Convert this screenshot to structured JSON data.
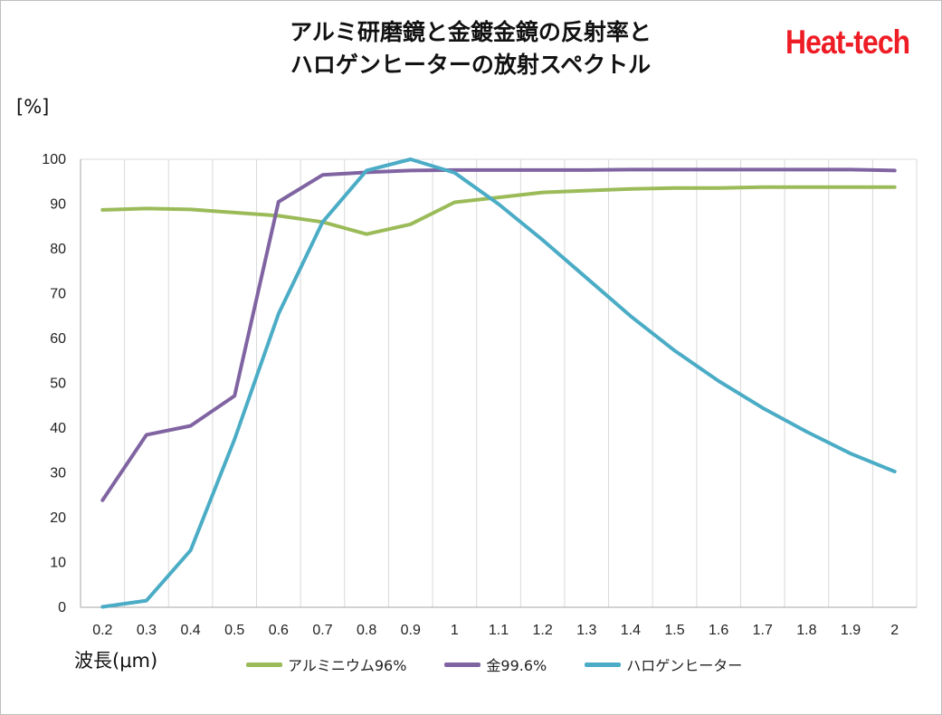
{
  "brand": "Heat-tech",
  "chart_data": {
    "type": "line",
    "title": [
      "アルミ研磨鏡と金鍍金鏡の反射率と",
      "ハロゲンヒーターの放射スペクトル"
    ],
    "ylabel": "[%]",
    "xlabel": "波長(μm)",
    "x": [
      0.2,
      0.3,
      0.4,
      0.5,
      0.6,
      0.7,
      0.8,
      0.9,
      1.0,
      1.1,
      1.2,
      1.3,
      1.4,
      1.5,
      1.6,
      1.7,
      1.8,
      1.9,
      2.0
    ],
    "x_tick_labels": [
      "0.2",
      "0.3",
      "0.4",
      "0.5",
      "0.6",
      "0.7",
      "0.8",
      "0.9",
      "1",
      "1.1",
      "1.2",
      "1.3",
      "1.4",
      "1.5",
      "1.6",
      "1.7",
      "1.8",
      "1.9",
      "2"
    ],
    "ylim": [
      0,
      100
    ],
    "y_ticks": [
      0,
      10,
      20,
      30,
      40,
      50,
      60,
      70,
      80,
      90,
      100
    ],
    "grid": "vertical",
    "legend_position": "bottom",
    "series": [
      {
        "name": "アルミニウム96%",
        "color": "#9bbb59",
        "values": [
          88.7,
          89.0,
          88.8,
          88.1,
          87.4,
          86.0,
          83.3,
          85.5,
          90.4,
          91.5,
          92.6,
          93.0,
          93.4,
          93.6,
          93.6,
          93.8,
          93.8,
          93.8,
          93.8
        ]
      },
      {
        "name": "金99.6%",
        "color": "#8064a2",
        "values": [
          23.9,
          38.5,
          40.5,
          47.2,
          90.5,
          96.5,
          97.1,
          97.5,
          97.6,
          97.6,
          97.6,
          97.6,
          97.7,
          97.7,
          97.7,
          97.7,
          97.7,
          97.7,
          97.5
        ]
      },
      {
        "name": "ハロゲンヒーター",
        "color": "#4bacc6",
        "values": [
          0.1,
          1.5,
          12.7,
          37.5,
          65.5,
          86.0,
          97.5,
          100.0,
          97.0,
          90.0,
          82.0,
          73.5,
          65.0,
          57.3,
          50.5,
          44.5,
          39.2,
          34.3,
          30.3
        ]
      }
    ]
  }
}
